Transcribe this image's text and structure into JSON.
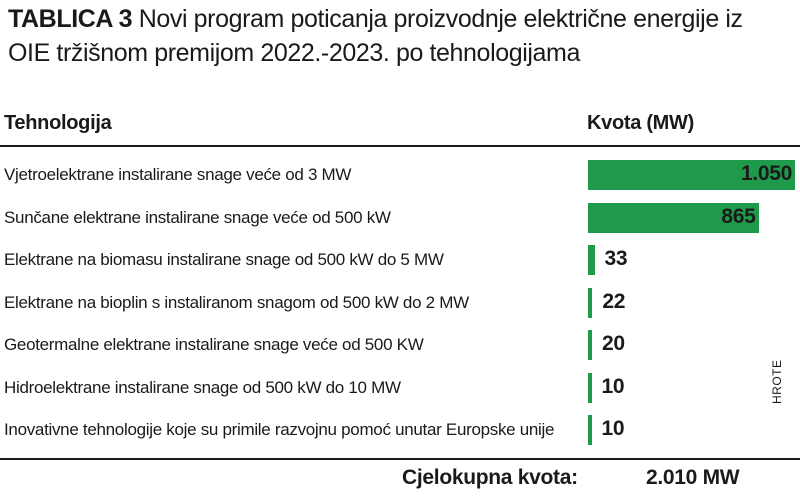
{
  "title": {
    "label": "TABLICA 3",
    "text": "Novi program poticanja proizvodnje električne energije iz OIE tržišnom premijom 2022.-2023. po tehnologijama"
  },
  "header": {
    "col_technology": "Tehnologija",
    "col_quota": "Kvota (MW)"
  },
  "source": "HROTE",
  "total": {
    "label": "Cjelokupna kvota:",
    "value": "2.010 MW"
  },
  "colors": {
    "bar": "#1f9a4a",
    "text": "#1a1a1a"
  },
  "chart_data": {
    "type": "bar",
    "orientation": "horizontal",
    "categories": [
      "Vjetroelektrane instalirane snage veće od 3 MW",
      "Sunčane elektrane instalirane snage veće od 500 kW",
      "Elektrane na biomasu instalirane snage od 500 kW do 5 MW",
      "Elektrane na bioplin s instaliranom snagom od 500 kW do 2 MW",
      "Geotermalne elektrane instalirane snage veće od 500 KW",
      "Hidroelektrane instalirane snage od 500 kW do 10 MW",
      "Inovativne tehnologije koje su primile razvojnu pomoć unutar Europske unije"
    ],
    "values": [
      1050,
      865,
      33,
      22,
      20,
      10,
      10
    ],
    "value_labels": [
      "1.050",
      "865",
      "33",
      "22",
      "20",
      "10",
      "10"
    ],
    "xlim": [
      0,
      1050
    ]
  }
}
